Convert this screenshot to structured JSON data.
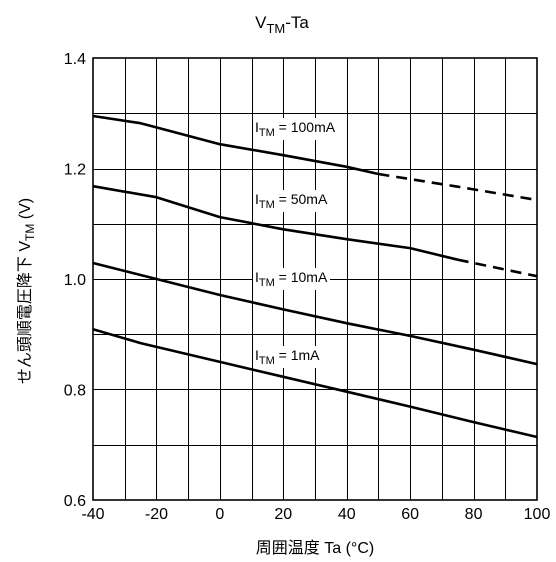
{
  "chart_data": {
    "type": "line",
    "title": {
      "base": "V",
      "sub": "TM",
      "suffix": "-Ta"
    },
    "xlabel": "周囲温度 Ta (°C)",
    "ylabel": {
      "base": "せん頭順電圧降下 V",
      "sub": "TM",
      "suffix": " (V)"
    },
    "xlim": [
      -40,
      100
    ],
    "ylim": [
      0.6,
      1.4
    ],
    "xticks": [
      "-40",
      "-20",
      "0",
      "20",
      "40",
      "60",
      "80",
      "100"
    ],
    "yticks": [
      "0.6",
      "0.8",
      "1.0",
      "1.2",
      "1.4"
    ],
    "grid": true,
    "x_grid_step": 10,
    "y_grid_step": 0.1,
    "line_color": "#000000",
    "series": [
      {
        "label": [
          "I",
          "TM",
          " = 100mA"
        ],
        "x": [
          -40,
          -25,
          0,
          20,
          40,
          50,
          75,
          100
        ],
        "y": [
          1.295,
          1.282,
          1.244,
          1.224,
          1.203,
          1.19,
          1.167,
          1.143
        ],
        "dashed_from": 50
      },
      {
        "label": [
          "I",
          "TM",
          " = 50mA"
        ],
        "x": [
          -40,
          -20,
          0,
          20,
          40,
          60,
          75,
          100
        ],
        "y": [
          1.168,
          1.148,
          1.112,
          1.09,
          1.072,
          1.056,
          1.035,
          1.005
        ],
        "dashed_from": 75
      },
      {
        "label": [
          "I",
          "TM",
          " = 10mA"
        ],
        "x": [
          -40,
          -20,
          0,
          20,
          40,
          60,
          80,
          100
        ],
        "y": [
          1.029,
          1.0,
          0.971,
          0.945,
          0.92,
          0.897,
          0.872,
          0.846
        ]
      },
      {
        "label": [
          "I",
          "TM",
          " = 1mA"
        ],
        "x": [
          -40,
          -25,
          0,
          20,
          40,
          60,
          80,
          100
        ],
        "y": [
          0.909,
          0.884,
          0.85,
          0.823,
          0.796,
          0.769,
          0.741,
          0.714
        ]
      }
    ]
  }
}
